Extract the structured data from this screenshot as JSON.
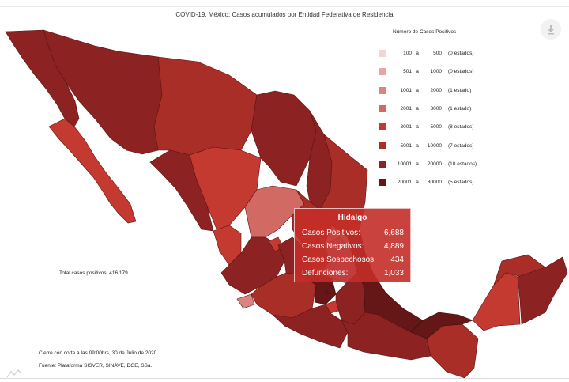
{
  "title": "COVID-19, México: Casos acumulados por Entidad Federativa de Residencia",
  "legend": {
    "title": "Número de Casos Positivos",
    "items": [
      {
        "min": "100",
        "sep": "a",
        "max": "500",
        "count": "(0 estados)",
        "color": "#f5d5d3"
      },
      {
        "min": "501",
        "sep": "a",
        "max": "1000",
        "count": "(0 estados)",
        "color": "#e6a6a2"
      },
      {
        "min": "1001",
        "sep": "a",
        "max": "2000",
        "count": "(1 estado)",
        "color": "#d98480"
      },
      {
        "min": "2001",
        "sep": "a",
        "max": "3000",
        "count": "(1 estado)",
        "color": "#d16a63"
      },
      {
        "min": "3001",
        "sep": "a",
        "max": "5000",
        "count": "(8 estados)",
        "color": "#c43a31"
      },
      {
        "min": "5001",
        "sep": "a",
        "max": "10000",
        "count": "(7 estados)",
        "color": "#a82e27"
      },
      {
        "min": "10001",
        "sep": "a",
        "max": "20000",
        "count": "(10 estados)",
        "color": "#8c2322"
      },
      {
        "min": "20001",
        "sep": "a",
        "max": "80000",
        "count": "(5 estados)",
        "color": "#641716"
      }
    ]
  },
  "total": "Total casos positivos: 416,179",
  "footer": {
    "cutoff": "Cierre con corte a las 09:00hrs, 30 de Julio de 2020",
    "source": "Fuente: Plataforma SISVER, SINAVE, DGE, SSa."
  },
  "tooltip": {
    "state": "Hidalgo",
    "rows": [
      {
        "label": "Casos Positivos:",
        "value": "6,688"
      },
      {
        "label": "Casos Negativos:",
        "value": "4,889"
      },
      {
        "label": "Casos Sospechosos:",
        "value": "434"
      },
      {
        "label": "Defunciones:",
        "value": "1,033"
      }
    ]
  },
  "icons": {
    "download": "download-icon",
    "watermark": "chart-logo-icon"
  },
  "colors": {
    "highlight": "#a9c8e6"
  }
}
